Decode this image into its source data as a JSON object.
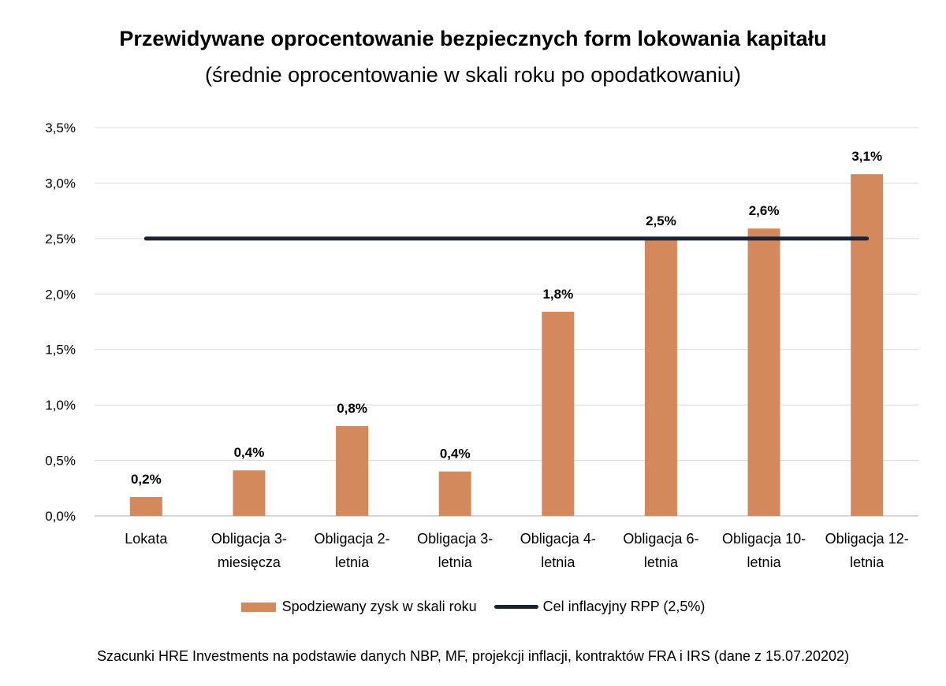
{
  "title": "Przewidywane oprocentowanie bezpiecznych form lokowania kapitału",
  "subtitle": "(średnie oprocentowanie w skali roku po opodatkowaniu)",
  "source": "Szacunki HRE Investments na podstawie danych NBP, MF, projekcji inflacji, kontraktów FRA i IRS (dane z 15.07.20202)",
  "colors": {
    "bar": "#D4895C",
    "line": "#1C2333",
    "grid": "#D9D9D9",
    "axis": "#BFBFBF"
  },
  "chart_data": {
    "type": "bar",
    "categories": [
      [
        "Lokata"
      ],
      [
        "Obligacja 3-",
        "miesięcza"
      ],
      [
        "Obligacja 2-",
        "letnia"
      ],
      [
        "Obligacja 3-",
        "letnia"
      ],
      [
        "Obligacja 4-",
        "letnia"
      ],
      [
        "Obligacja 6-",
        "letnia"
      ],
      [
        "Obligacja 10-",
        "letnia"
      ],
      [
        "Obligacja 12-",
        "letnia"
      ]
    ],
    "series": [
      {
        "name": "Spodziewany zysk w skali roku",
        "type": "bar",
        "values": [
          0.17,
          0.41,
          0.81,
          0.4,
          1.84,
          2.5,
          2.59,
          3.08
        ],
        "labels": [
          "0,2%",
          "0,4%",
          "0,8%",
          "0,4%",
          "1,8%",
          "2,5%",
          "2,6%",
          "3,1%"
        ]
      },
      {
        "name": "Cel inflacyjny RPP (2,5%)",
        "type": "line",
        "values": [
          2.5,
          2.5,
          2.5,
          2.5,
          2.5,
          2.5,
          2.5,
          2.5
        ]
      }
    ],
    "ylim": [
      0,
      3.5
    ],
    "yticks": [
      0,
      0.5,
      1.0,
      1.5,
      2.0,
      2.5,
      3.0,
      3.5
    ],
    "ytick_labels": [
      "0,0%",
      "0,5%",
      "1,0%",
      "1,5%",
      "2,0%",
      "2,5%",
      "3,0%",
      "3,5%"
    ],
    "grid": true,
    "legend": "bottom"
  }
}
